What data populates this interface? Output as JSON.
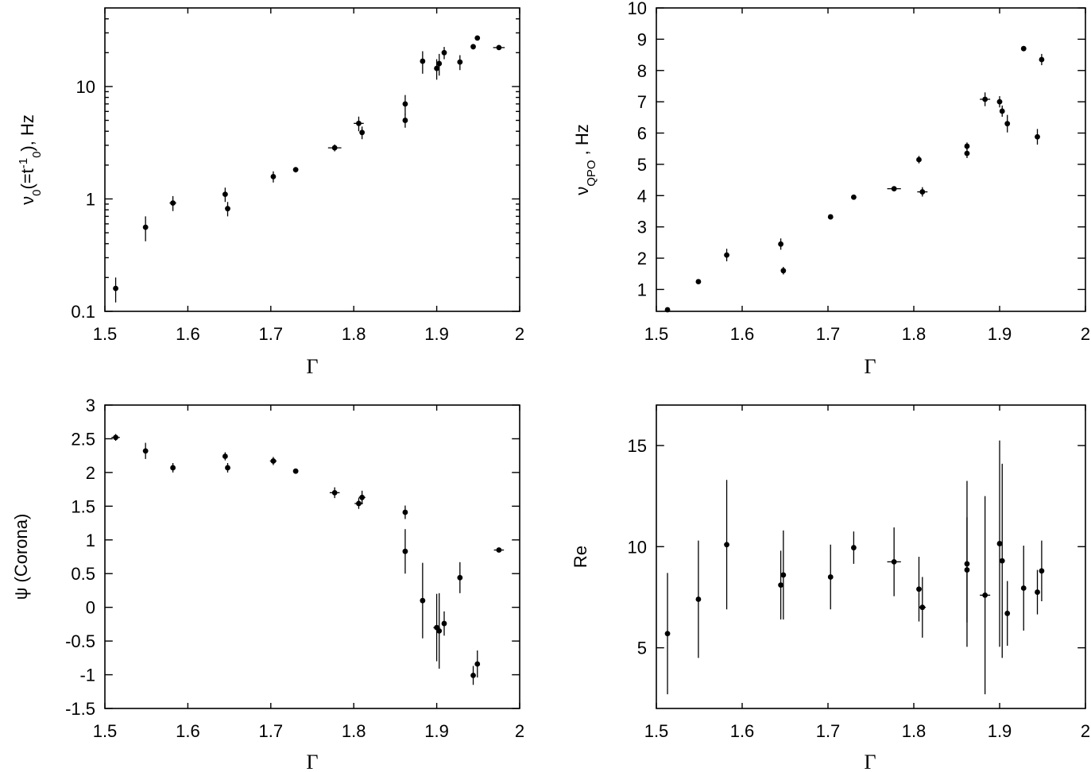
{
  "chart_data": [
    {
      "type": "scatter",
      "xlabel": "Γ",
      "ylabel_parts": {
        "base": "ν",
        "sub": "0",
        "mid": "(=t",
        "sup": "-1",
        "sub2": "0",
        "end": "), Hz"
      },
      "yscale": "log",
      "xlim": [
        1.5,
        2.0
      ],
      "ylim": [
        0.1,
        50
      ],
      "xticks": [
        "1.5",
        "1.6",
        "1.7",
        "1.8",
        "1.9",
        "2"
      ],
      "yticks": [
        "0.1",
        "1",
        "10"
      ],
      "series": [
        {
          "x": [
            1.513,
            1.549,
            1.582,
            1.645,
            1.648,
            1.703,
            1.73,
            1.777,
            1.806,
            1.81,
            1.862,
            1.862,
            1.883,
            1.9,
            1.903,
            1.909,
            1.928,
            1.944,
            1.949,
            1.975
          ],
          "y": [
            0.16,
            0.56,
            0.92,
            1.1,
            0.82,
            1.58,
            1.82,
            2.85,
            4.7,
            3.9,
            5.0,
            7.0,
            16.8,
            14.5,
            16.0,
            20.0,
            16.5,
            22.6,
            27.0,
            22.2
          ],
          "y_err": [
            0.04,
            0.14,
            0.14,
            0.16,
            0.12,
            0.18,
            0.1,
            0.2,
            0.7,
            0.5,
            0.7,
            1.4,
            3.8,
            3.0,
            3.5,
            2.5,
            2.5,
            1.2,
            1.2,
            1.0
          ],
          "x_err": [
            0,
            0,
            0.004,
            0,
            0,
            0,
            0,
            0.008,
            0.006,
            0,
            0,
            0,
            0,
            0,
            0,
            0,
            0,
            0,
            0,
            0.007
          ]
        }
      ]
    },
    {
      "type": "scatter",
      "xlabel": "Γ",
      "ylabel_parts": {
        "base": "ν",
        "sub": "QPO",
        "end": " , Hz"
      },
      "xlim": [
        1.5,
        2.0
      ],
      "ylim": [
        0.3,
        10
      ],
      "xticks": [
        "1.5",
        "1.6",
        "1.7",
        "1.8",
        "1.9",
        "2"
      ],
      "yticks": [
        "1",
        "2",
        "3",
        "4",
        "5",
        "6",
        "7",
        "8",
        "9",
        "10"
      ],
      "series": [
        {
          "x": [
            1.513,
            1.549,
            1.582,
            1.645,
            1.648,
            1.703,
            1.73,
            1.777,
            1.806,
            1.81,
            1.862,
            1.862,
            1.883,
            1.9,
            1.903,
            1.909,
            1.928,
            1.944,
            1.949
          ],
          "y": [
            0.35,
            1.25,
            2.1,
            2.45,
            1.6,
            3.32,
            3.95,
            4.22,
            5.15,
            4.12,
            5.58,
            5.35,
            7.08,
            7.0,
            6.7,
            6.3,
            8.7,
            5.88,
            8.35
          ],
          "y_err": [
            0.08,
            0.05,
            0.2,
            0.18,
            0.12,
            0.06,
            0.08,
            0.05,
            0.12,
            0.15,
            0.12,
            0.15,
            0.22,
            0.18,
            0.18,
            0.28,
            0.08,
            0.25,
            0.18
          ],
          "x_err": [
            0,
            0,
            0,
            0,
            0,
            0,
            0,
            0.008,
            0,
            0.006,
            0,
            0,
            0.006,
            0,
            0,
            0,
            0,
            0,
            0
          ]
        }
      ]
    },
    {
      "type": "scatter",
      "xlabel": "Γ",
      "ylabel": "ψ (Corona)",
      "xlim": [
        1.5,
        2.0
      ],
      "ylim": [
        -1.5,
        3.0
      ],
      "xticks": [
        "1.5",
        "1.6",
        "1.7",
        "1.8",
        "1.9",
        "2"
      ],
      "yticks": [
        "-1.5",
        "-1",
        "-0.5",
        "0",
        "0.5",
        "1",
        "1.5",
        "2",
        "2.5",
        "3"
      ],
      "series": [
        {
          "x": [
            1.513,
            1.549,
            1.582,
            1.645,
            1.648,
            1.703,
            1.73,
            1.777,
            1.806,
            1.81,
            1.862,
            1.862,
            1.883,
            1.9,
            1.903,
            1.909,
            1.928,
            1.944,
            1.949,
            1.975
          ],
          "y": [
            2.52,
            2.32,
            2.07,
            2.24,
            2.07,
            2.17,
            2.02,
            1.7,
            1.54,
            1.63,
            1.41,
            0.83,
            0.1,
            -0.3,
            -0.35,
            -0.24,
            0.44,
            -1.01,
            -0.84,
            0.85
          ],
          "y_err": [
            0.05,
            0.12,
            0.07,
            0.06,
            0.07,
            0.06,
            0.02,
            0.08,
            0.08,
            0.1,
            0.1,
            0.33,
            0.56,
            0.5,
            0.56,
            0.18,
            0.23,
            0.14,
            0.2,
            0.02
          ],
          "x_err": [
            0.005,
            0,
            0,
            0,
            0,
            0.004,
            0,
            0.006,
            0.005,
            0.004,
            0,
            0,
            0,
            0.004,
            0,
            0,
            0,
            0,
            0,
            0.006
          ]
        }
      ]
    },
    {
      "type": "scatter",
      "xlabel": "Γ",
      "ylabel": "Re",
      "xlim": [
        1.5,
        2.0
      ],
      "ylim": [
        2,
        17
      ],
      "xticks": [
        "1.5",
        "1.6",
        "1.7",
        "1.8",
        "1.9",
        "2"
      ],
      "yticks": [
        "5",
        "10",
        "15"
      ],
      "series": [
        {
          "x": [
            1.513,
            1.549,
            1.582,
            1.645,
            1.648,
            1.703,
            1.73,
            1.777,
            1.806,
            1.81,
            1.862,
            1.862,
            1.883,
            1.9,
            1.903,
            1.909,
            1.928,
            1.944,
            1.949
          ],
          "y": [
            5.7,
            7.4,
            10.1,
            8.1,
            8.6,
            8.5,
            9.95,
            9.25,
            7.9,
            7.0,
            9.15,
            8.85,
            7.6,
            10.15,
            9.3,
            6.7,
            7.95,
            7.75,
            8.8
          ],
          "y_err": [
            3.0,
            2.9,
            3.2,
            1.7,
            2.2,
            1.6,
            0.8,
            1.7,
            1.6,
            1.5,
            4.1,
            2.6,
            4.9,
            5.1,
            4.8,
            1.6,
            2.1,
            1.1,
            1.5
          ],
          "x_err": [
            0,
            0,
            0,
            0,
            0,
            0,
            0,
            0.008,
            0,
            0.004,
            0,
            0,
            0.006,
            0,
            0,
            0,
            0,
            0,
            0
          ]
        }
      ]
    }
  ]
}
